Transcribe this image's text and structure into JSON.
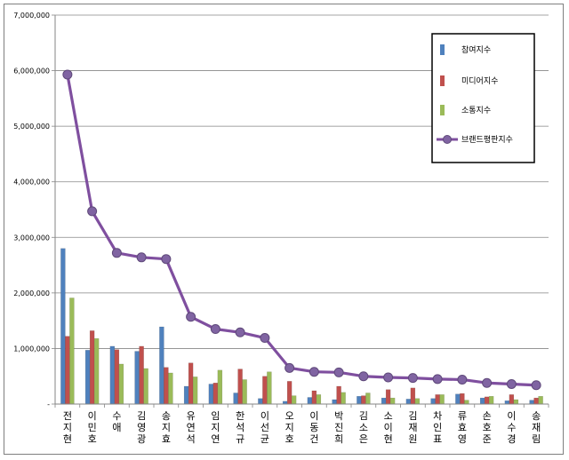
{
  "chart_data": {
    "type": "bar",
    "categories": [
      "전지현",
      "이민호",
      "수애",
      "김영광",
      "송지효",
      "유연석",
      "임지연",
      "한석규",
      "이선균",
      "오지호",
      "이동건",
      "박진희",
      "김소은",
      "소이현",
      "김재원",
      "차인표",
      "류효영",
      "손호준",
      "이수경",
      "송재림"
    ],
    "series": [
      {
        "name": "참여지수",
        "kind": "bar",
        "color": "#4f81bd",
        "values": [
          2800000,
          970000,
          1040000,
          950000,
          1390000,
          320000,
          360000,
          200000,
          100000,
          50000,
          120000,
          80000,
          140000,
          110000,
          90000,
          100000,
          180000,
          110000,
          60000,
          70000
        ]
      },
      {
        "name": "미디어지수",
        "kind": "bar",
        "color": "#c0504d",
        "values": [
          1220000,
          1320000,
          980000,
          1040000,
          660000,
          740000,
          380000,
          630000,
          500000,
          410000,
          240000,
          320000,
          150000,
          260000,
          290000,
          170000,
          190000,
          130000,
          170000,
          110000
        ]
      },
      {
        "name": "소통지수",
        "kind": "bar",
        "color": "#9bbb59",
        "values": [
          1910000,
          1180000,
          720000,
          640000,
          560000,
          490000,
          610000,
          440000,
          580000,
          150000,
          170000,
          210000,
          200000,
          110000,
          100000,
          170000,
          70000,
          140000,
          80000,
          140000
        ]
      },
      {
        "name": "브랜드평판지수",
        "kind": "line",
        "color": "#7f4f9f",
        "values": [
          5930000,
          3470000,
          2720000,
          2640000,
          2610000,
          1570000,
          1350000,
          1290000,
          1190000,
          650000,
          580000,
          570000,
          500000,
          480000,
          470000,
          450000,
          440000,
          380000,
          360000,
          340000
        ]
      }
    ],
    "yticks": [
      "-",
      "1,000,000",
      "2,000,000",
      "3,000,000",
      "4,000,000",
      "5,000,000",
      "6,000,000",
      "7,000,000"
    ],
    "ylim": [
      0,
      7000000
    ],
    "grid": true,
    "legend": "top-right"
  }
}
